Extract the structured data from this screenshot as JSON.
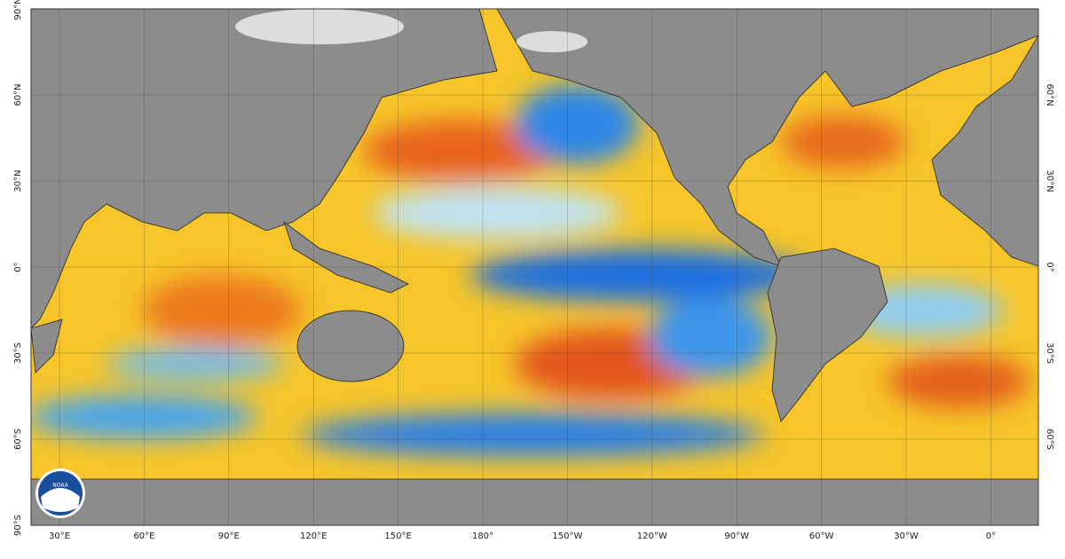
{
  "map": {
    "lon_labels": [
      "30°E",
      "60°E",
      "90°E",
      "120°E",
      "150°E",
      "180°",
      "150°W",
      "120°W",
      "90°W",
      "60°W",
      "30°W",
      "0°"
    ],
    "lat_labels_left": [
      "90°N",
      "60°N",
      "30°N",
      "0°",
      "30°S",
      "60°S",
      "90°S"
    ],
    "lat_labels_right": [
      "60°N",
      "30°N",
      "0°",
      "30°S",
      "60°S"
    ],
    "logo": "NOAA"
  }
}
